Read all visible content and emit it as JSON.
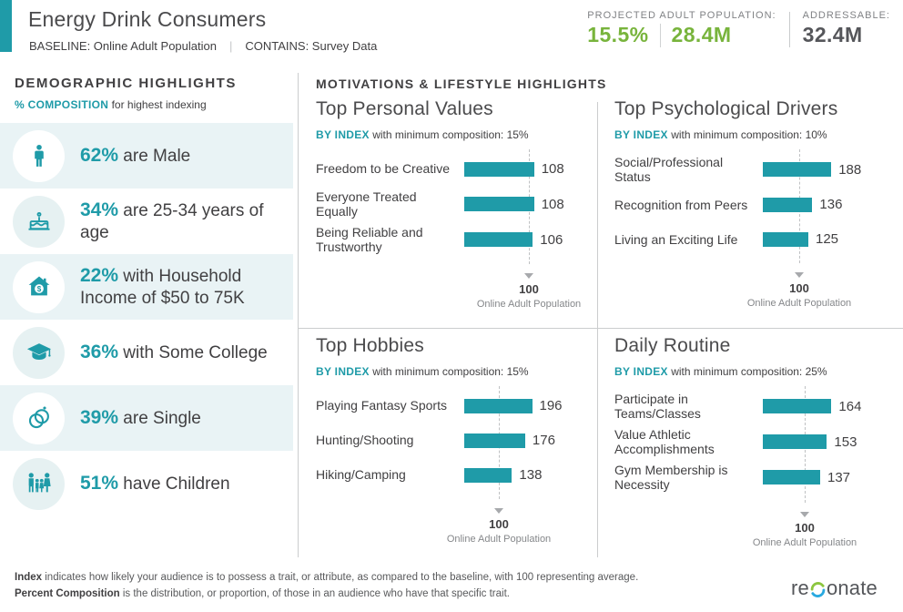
{
  "colors": {
    "teal": "#1F9BA8",
    "green": "#78B43C",
    "dark_text": "#414042",
    "gray_text": "#808285",
    "row_tint": "#E9F3F5"
  },
  "header": {
    "title": "Energy Drink Consumers",
    "baseline": "BASELINE: Online Adult Population",
    "contains": "CONTAINS: Survey Data",
    "projected_label": "PROJECTED ADULT POPULATION:",
    "projected_percent": "15.5%",
    "projected_count": "28.4M",
    "addressable_label": "ADDRESSABLE:",
    "addressable_value": "32.4M"
  },
  "sidebar": {
    "title": "DEMOGRAPHIC HIGHLIGHTS",
    "subtitle_strong": "% COMPOSITION",
    "subtitle_rest": " for highest indexing",
    "items": [
      {
        "icon": "male-icon",
        "value": "62%",
        "text": " are Male"
      },
      {
        "icon": "birthday-cake-icon",
        "value": "34%",
        "text": " are 25-34 years of age"
      },
      {
        "icon": "house-income-icon",
        "value": "22%",
        "text": " with Household Income of $50 to 75K"
      },
      {
        "icon": "graduation-cap-icon",
        "value": "36%",
        "text": " with Some College"
      },
      {
        "icon": "wedding-rings-icon",
        "value": "39%",
        "text": " are Single"
      },
      {
        "icon": "family-icon",
        "value": "51%",
        "text": " have Children"
      }
    ]
  },
  "main": {
    "title": "MOTIVATIONS & LIFESTYLE HIGHLIGHTS"
  },
  "chart_data": [
    {
      "type": "bar",
      "orientation": "horizontal",
      "title": "Top Personal Values",
      "subtitle_strong": "BY INDEX",
      "subtitle_rest": " with minimum composition: 15%",
      "categories": [
        "Freedom to be Creative",
        "Everyone Treated Equally",
        "Being Reliable and Trustworthy"
      ],
      "values": [
        108,
        108,
        106
      ],
      "baseline": {
        "value": "100",
        "label": "Online Adult Population"
      },
      "xlim": [
        0,
        130
      ],
      "grid": false
    },
    {
      "type": "bar",
      "orientation": "horizontal",
      "title": "Top Psychological Drivers",
      "subtitle_strong": "BY INDEX",
      "subtitle_rest": " with minimum composition: 10%",
      "categories": [
        "Social/Professional Status",
        "Recognition from Peers",
        "Living an Exciting Life"
      ],
      "values": [
        188,
        136,
        125
      ],
      "baseline": {
        "value": "100",
        "label": "Online Adult Population"
      },
      "xlim": [
        0,
        200
      ],
      "grid": false
    },
    {
      "type": "bar",
      "orientation": "horizontal",
      "title": "Top Hobbies",
      "subtitle_strong": "BY INDEX",
      "subtitle_rest": " with minimum composition: 15%",
      "categories": [
        "Playing Fantasy Sports",
        "Hunting/Shooting",
        "Hiking/Camping"
      ],
      "values": [
        196,
        176,
        138
      ],
      "baseline": {
        "value": "100",
        "label": "Online Adult Population"
      },
      "xlim": [
        0,
        210
      ],
      "grid": false
    },
    {
      "type": "bar",
      "orientation": "horizontal",
      "title": "Daily Routine",
      "subtitle_strong": "BY INDEX",
      "subtitle_rest": " with minimum composition: 25%",
      "categories": [
        "Participate in Teams/Classes",
        "Value Athletic Accomplishments",
        "Gym Membership is Necessity"
      ],
      "values": [
        164,
        153,
        137
      ],
      "baseline": {
        "value": "100",
        "label": "Online Adult Population"
      },
      "xlim": [
        0,
        175
      ],
      "grid": false
    }
  ],
  "footer": {
    "index_term": "Index",
    "index_text": " indicates how likely your audience is to possess a trait, or attribute, as compared to the baseline, with 100 representing average.",
    "composition_term": "Percent Composition",
    "composition_text": " is the distribution, or proportion, of those in an audience who have that specific trait.",
    "brand_prefix": "re",
    "brand_suffix": "onate"
  }
}
